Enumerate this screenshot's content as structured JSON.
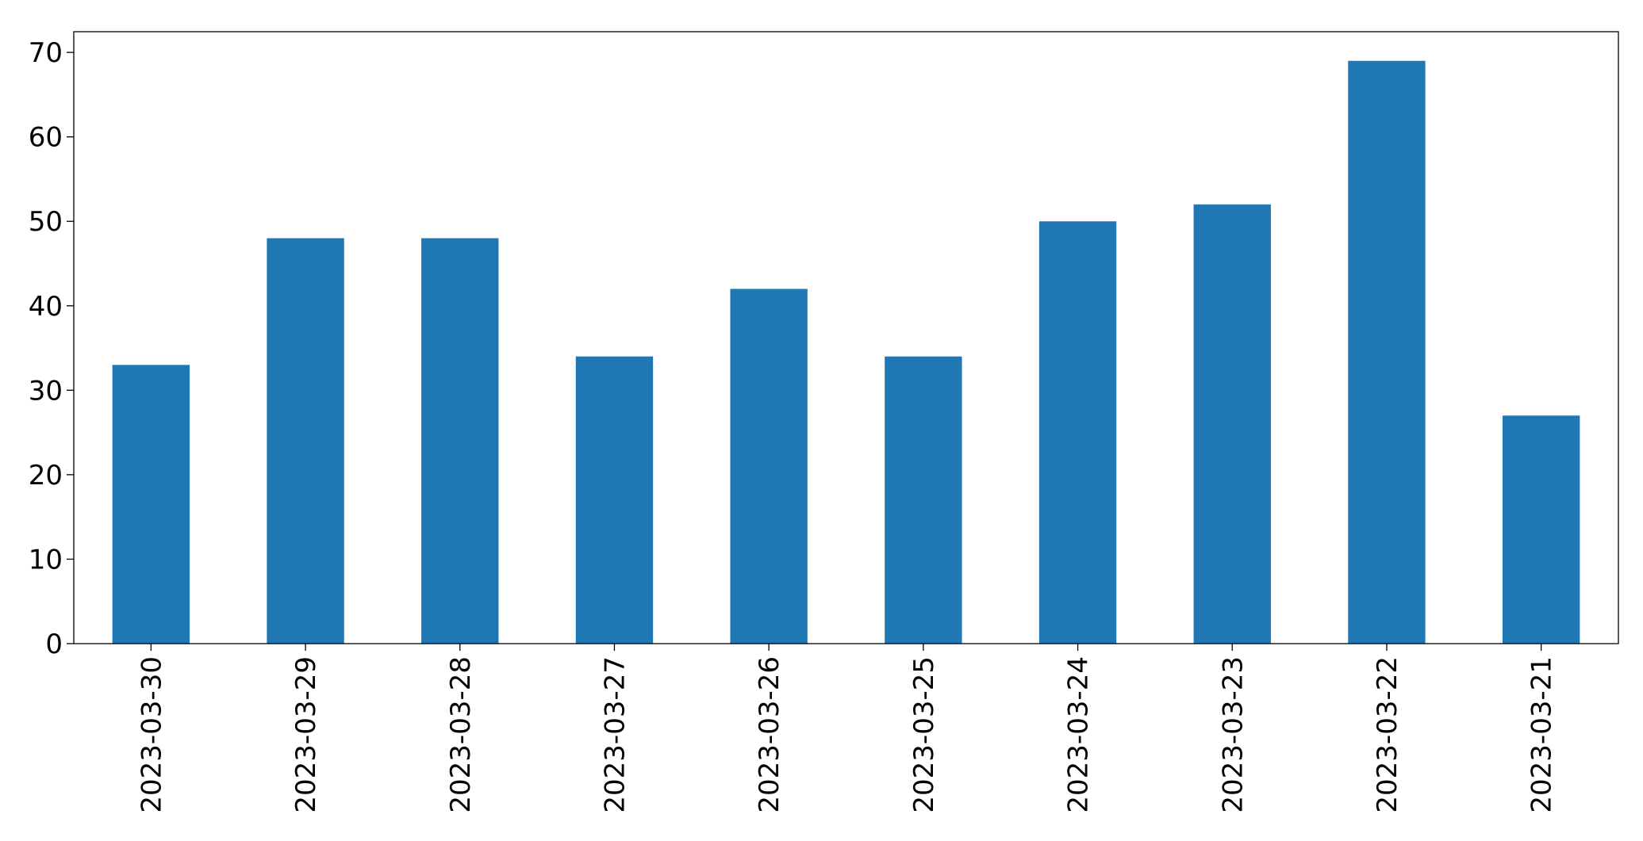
{
  "chart_data": {
    "type": "bar",
    "categories": [
      "2023-03-30",
      "2023-03-29",
      "2023-03-28",
      "2023-03-27",
      "2023-03-26",
      "2023-03-25",
      "2023-03-24",
      "2023-03-23",
      "2023-03-22",
      "2023-03-21"
    ],
    "values": [
      33,
      48,
      48,
      34,
      42,
      34,
      50,
      52,
      69,
      27
    ],
    "color": "#1f77b4",
    "ylim": [
      0,
      72.45
    ],
    "yticks": [
      0,
      10,
      20,
      30,
      40,
      50,
      60,
      70
    ],
    "grid": false
  }
}
